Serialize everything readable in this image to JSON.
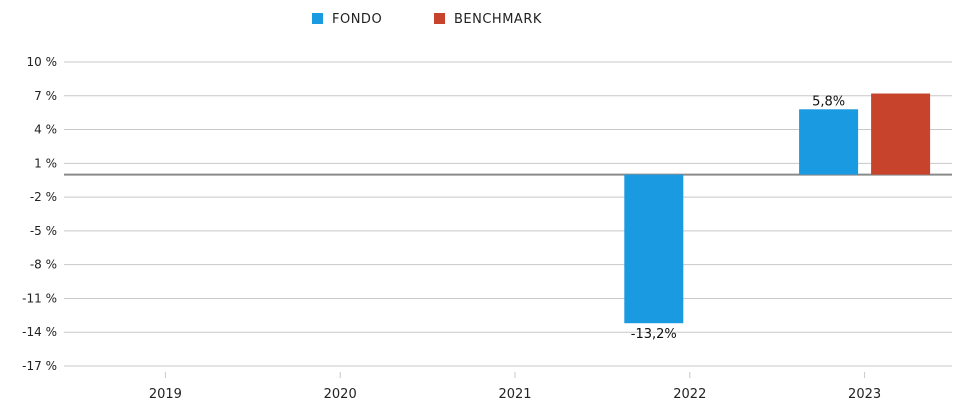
{
  "chart_data": {
    "type": "bar",
    "title": "",
    "xlabel": "",
    "ylabel": "",
    "categories": [
      "2019",
      "2020",
      "2021",
      "2022",
      "2023"
    ],
    "series": [
      {
        "name": "FONDO",
        "color": "#1a9ae0",
        "values": [
          null,
          null,
          null,
          -13.2,
          5.8
        ],
        "data_labels": [
          null,
          null,
          null,
          "-13,2%",
          "5,8%"
        ]
      },
      {
        "name": "BENCHMARK",
        "color": "#c8432c",
        "values": [
          null,
          null,
          null,
          null,
          7.2
        ],
        "data_labels": [
          null,
          null,
          null,
          null,
          null
        ]
      }
    ],
    "ylim": [
      -17,
      10
    ],
    "yticks": [
      10,
      7,
      4,
      1,
      -2,
      -5,
      -8,
      -11,
      -14,
      -17
    ],
    "ytick_labels": [
      "10 %",
      "7 %",
      "4 %",
      "1 %",
      "-2 %",
      "-5 %",
      "-8 %",
      "-11 %",
      "-14 %",
      "-17 %"
    ],
    "grid": true,
    "legend_position": "top-center"
  }
}
